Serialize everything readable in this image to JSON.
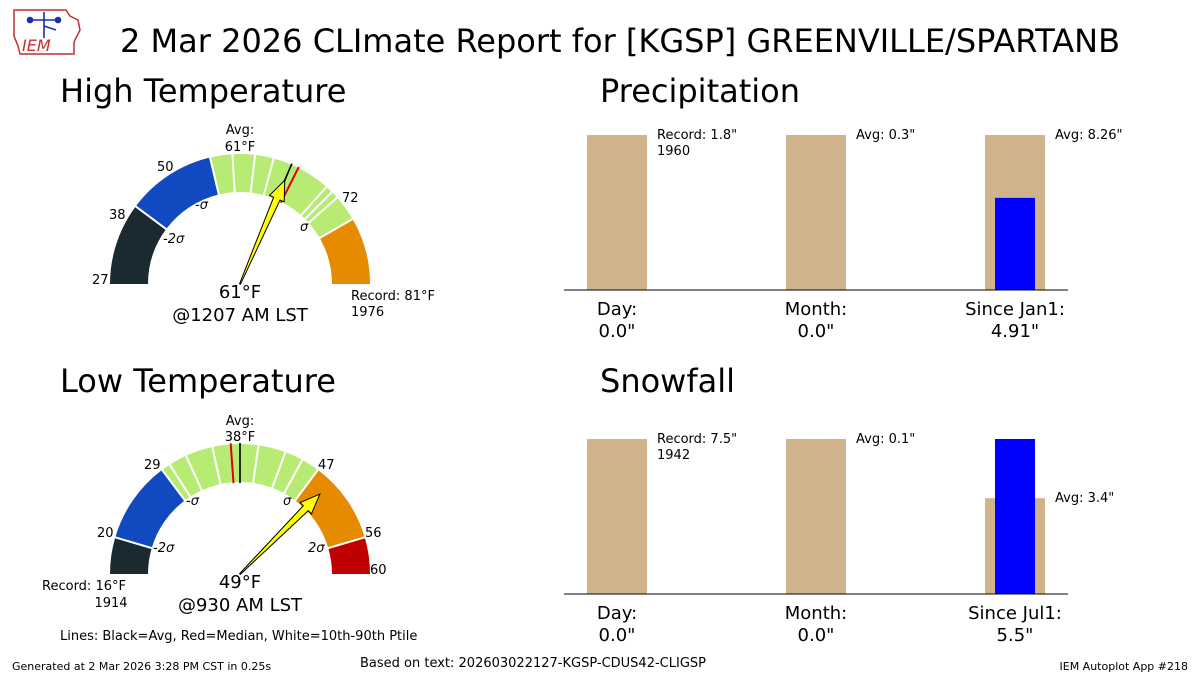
{
  "report": {
    "title": "2 Mar 2026 CLImate Report for [KGSP] GREENVILLE/SPARTANB",
    "logo_text": "IEM",
    "legend_lines": "Lines: Black=Avg, Red=Median, White=10th-90th Ptile",
    "generated": "Generated at 2 Mar 2026 3:28 PM CST in 0.25s",
    "based_on": "Based on text: 202603022127-KGSP-CDUS42-CLIGSP",
    "app": "IEM Autoplot App #218"
  },
  "colors": {
    "record_cold": "#1b2a30",
    "cold": "#1049c0",
    "normal": "#b8eb73",
    "warm": "#e68a00",
    "record_warm": "#c00000",
    "avg_bar": "#d2b48c",
    "obs_bar": "#0000ff",
    "needle": "#ffff00"
  },
  "high_gauge": {
    "section_title": "High Temperature",
    "avg_label": "Avg:",
    "avg_value_label": "61°F",
    "value_label": "61°F",
    "time_label": "@1207 AM LST",
    "record_label": "Record: 81°F",
    "record_year": "1976",
    "min_label": "27",
    "lower2_label": "38",
    "lower1_label": "50",
    "upper1_label": "72",
    "sigma_m2_label": "-2σ",
    "sigma_m1_label": "-σ",
    "sigma_p1_label": "σ"
  },
  "low_gauge": {
    "section_title": "Low Temperature",
    "avg_label": "Avg:",
    "avg_value_label": "38°F",
    "value_label": "49°F",
    "time_label": "@930 AM LST",
    "record_label": "Record: 16°F",
    "record_year": "1914",
    "min_label": "20",
    "lower1_label": "29",
    "upper1_label": "47",
    "upper2_label": "56",
    "max_label": "60",
    "sigma_m2_label": "-2σ",
    "sigma_m1_label": "-σ",
    "sigma_p1_label": "σ",
    "sigma_p2_label": "2σ"
  },
  "chart_data": [
    {
      "type": "gauge",
      "title": "High Temperature",
      "min": 27,
      "max": 81,
      "avg": 61,
      "median": 62,
      "observed": 61,
      "bands": [
        {
          "from": 27,
          "to": 38,
          "color": "#1b2a30"
        },
        {
          "from": 38,
          "to": 50,
          "color": "#1049c0"
        },
        {
          "from": 50,
          "to": 72,
          "color": "#b8eb73"
        },
        {
          "from": 72,
          "to": 81,
          "color": "#e68a00"
        }
      ],
      "white_lines": [
        38,
        50,
        53,
        56,
        58.5,
        66.5,
        67.5,
        68.5,
        72
      ]
    },
    {
      "type": "gauge",
      "title": "Low Temperature",
      "min": 16,
      "max": 60,
      "avg": 38,
      "median": 37,
      "observed": 49,
      "bands": [
        {
          "from": 16,
          "to": 20,
          "color": "#1b2a30"
        },
        {
          "from": 20,
          "to": 29,
          "color": "#1049c0"
        },
        {
          "from": 29,
          "to": 47,
          "color": "#b8eb73"
        },
        {
          "from": 47,
          "to": 56,
          "color": "#e68a00"
        },
        {
          "from": 56,
          "to": 60,
          "color": "#c00000"
        }
      ],
      "white_lines": [
        20,
        29,
        30,
        32,
        35,
        40,
        43,
        45,
        47,
        56
      ]
    },
    {
      "type": "bar",
      "title": "Precipitation",
      "categories": [
        {
          "name": "Day:",
          "value_label": "0.0\"",
          "observed": 0.0,
          "avg_label": "Record: 1.8\"",
          "avg_sub": "1960"
        },
        {
          "name": "Month:",
          "value_label": "0.0\"",
          "observed": 0.0,
          "avg_label": "Avg: 0.3\"",
          "avg_sub": ""
        },
        {
          "name": "Since Jan1:",
          "value_label": "4.91\"",
          "observed": 4.91,
          "avg_label": "Avg: 8.26\"",
          "avg_sub": ""
        }
      ],
      "reference": [
        1.8,
        0.3,
        8.26
      ]
    },
    {
      "type": "bar",
      "title": "Snowfall",
      "categories": [
        {
          "name": "Day:",
          "value_label": "0.0\"",
          "observed": 0.0,
          "avg_label": "Record: 7.5\"",
          "avg_sub": "1942"
        },
        {
          "name": "Month:",
          "value_label": "0.0\"",
          "observed": 0.0,
          "avg_label": "Avg: 0.1\"",
          "avg_sub": ""
        },
        {
          "name": "Since Jul1:",
          "value_label": "5.5\"",
          "observed": 5.5,
          "avg_label": "Avg: 3.4\"",
          "avg_sub": ""
        }
      ],
      "reference": [
        7.5,
        0.1,
        3.4
      ]
    }
  ]
}
